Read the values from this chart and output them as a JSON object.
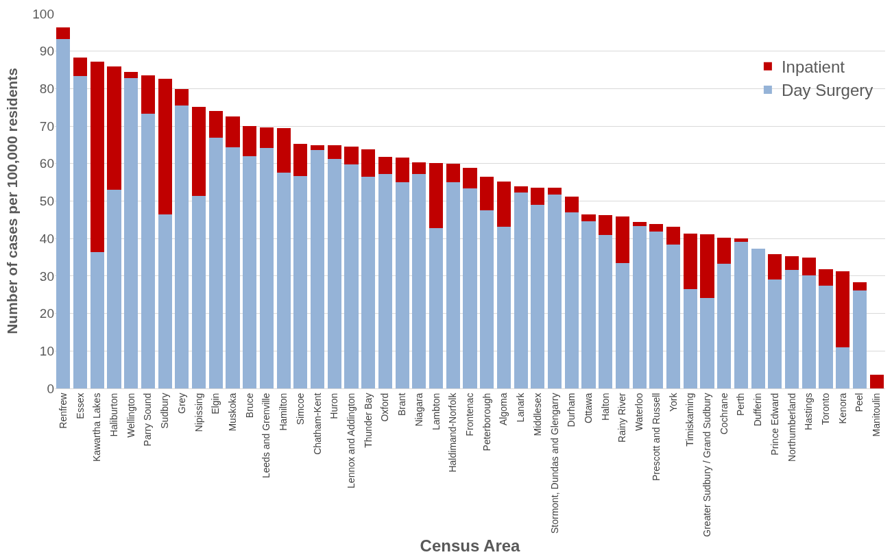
{
  "chart_data": {
    "type": "bar",
    "stacked": true,
    "xlabel": "Census Area",
    "ylabel": "Number of cases per 100,000 residents",
    "categories": [
      "Renfrew",
      "Essex",
      "Kawartha Lakes",
      "Haliburton",
      "Wellington",
      "Parry Sound",
      "Sudbury",
      "Grey",
      "Nipissing",
      "Elgin",
      "Muskoka",
      "Bruce",
      "Leeds and Grenville",
      "Hamilton",
      "Simcoe",
      "Chatham-Kent",
      "Huron",
      "Lennox and Addington",
      "Thunder Bay",
      "Oxford",
      "Brant",
      "Niagara",
      "Lambton",
      "Haldimand-Norfolk",
      "Frontenac",
      "Peterborough",
      "Algoma",
      "Lanark",
      "Middlesex",
      "Stormont, Dundas and Glengarry",
      "Durham",
      "Ottawa",
      "Halton",
      "Rainy River",
      "Waterloo",
      "Prescott and Russell",
      "York",
      "Timiskaming",
      "Greater Sudbury / Grand Sudbury",
      "Cochrane",
      "Perth",
      "Dufferin",
      "Prince Edward",
      "Northumberland",
      "Hastings",
      "Toronto",
      "Kenora",
      "Peel",
      "Manitoulin"
    ],
    "series": [
      {
        "name": "Day Surgery",
        "color": "#95b3d7",
        "values": [
          93.3,
          83.4,
          36.4,
          53.0,
          82.8,
          73.3,
          46.5,
          75.5,
          51.3,
          67.0,
          64.3,
          61.9,
          64.2,
          57.6,
          56.6,
          63.6,
          61.3,
          59.8,
          56.5,
          57.3,
          55.1,
          57.3,
          42.7,
          55.1,
          53.4,
          47.5,
          43.2,
          52.3,
          49.0,
          51.8,
          46.9,
          44.6,
          40.9,
          33.5,
          43.4,
          41.8,
          38.4,
          26.5,
          24.2,
          33.3,
          39.2,
          37.3,
          29.1,
          31.6,
          30.2,
          27.4,
          10.9,
          26.2,
          0
        ]
      },
      {
        "name": "Inpatient",
        "color": "#c00000",
        "values": [
          3.1,
          4.9,
          50.8,
          33.0,
          1.7,
          10.3,
          36.2,
          4.3,
          23.8,
          7.0,
          8.3,
          8.1,
          5.4,
          11.9,
          8.6,
          1.3,
          3.6,
          4.7,
          7.3,
          4.5,
          6.5,
          3.0,
          17.4,
          4.9,
          5.5,
          8.9,
          12.0,
          1.6,
          4.6,
          1.8,
          4.3,
          1.8,
          5.3,
          12.4,
          1.1,
          2.0,
          4.7,
          14.8,
          17.0,
          7.0,
          0.9,
          0,
          6.8,
          3.7,
          4.8,
          4.5,
          20.4,
          2.1,
          3.7
        ]
      }
    ],
    "ylim": [
      0,
      100
    ],
    "yticks": [
      0,
      10,
      20,
      30,
      40,
      50,
      60,
      70,
      80,
      90,
      100
    ],
    "grid": "y",
    "legend": "top right"
  }
}
